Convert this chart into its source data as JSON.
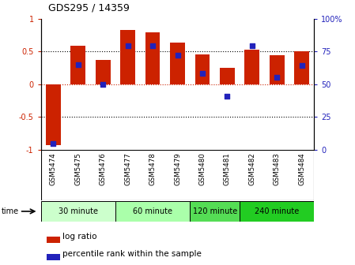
{
  "title": "GDS295 / 14359",
  "samples": [
    "GSM5474",
    "GSM5475",
    "GSM5476",
    "GSM5477",
    "GSM5478",
    "GSM5479",
    "GSM5480",
    "GSM5481",
    "GSM5482",
    "GSM5483",
    "GSM5484"
  ],
  "log_ratio": [
    -0.93,
    0.58,
    0.37,
    0.82,
    0.79,
    0.63,
    0.45,
    0.25,
    0.52,
    0.44,
    0.5
  ],
  "percentile": [
    5,
    65,
    50,
    79,
    79,
    72,
    58,
    41,
    79,
    55,
    64
  ],
  "bar_color": "#cc2200",
  "dot_color": "#2222bb",
  "ylim_left": [
    -1,
    1
  ],
  "ylim_right": [
    0,
    100
  ],
  "yticks_left": [
    -1,
    -0.5,
    0,
    0.5,
    1
  ],
  "yticks_right": [
    0,
    25,
    50,
    75,
    100
  ],
  "ytick_labels_left": [
    "-1",
    "-0.5",
    "0",
    "0.5",
    "1"
  ],
  "ytick_labels_right": [
    "0",
    "25",
    "50",
    "75",
    "100%"
  ],
  "hlines": [
    -0.5,
    0,
    0.5
  ],
  "groups": [
    {
      "label": "30 minute",
      "start": 0,
      "end": 3,
      "color": "#ccffcc"
    },
    {
      "label": "60 minute",
      "start": 3,
      "end": 6,
      "color": "#aaffaa"
    },
    {
      "label": "120 minute",
      "start": 6,
      "end": 8,
      "color": "#55dd55"
    },
    {
      "label": "240 minute",
      "start": 8,
      "end": 11,
      "color": "#22cc22"
    }
  ],
  "time_label": "time",
  "legend_bar_label": "log ratio",
  "legend_dot_label": "percentile rank within the sample",
  "background_color": "#ffffff",
  "label_bg_color": "#cccccc"
}
